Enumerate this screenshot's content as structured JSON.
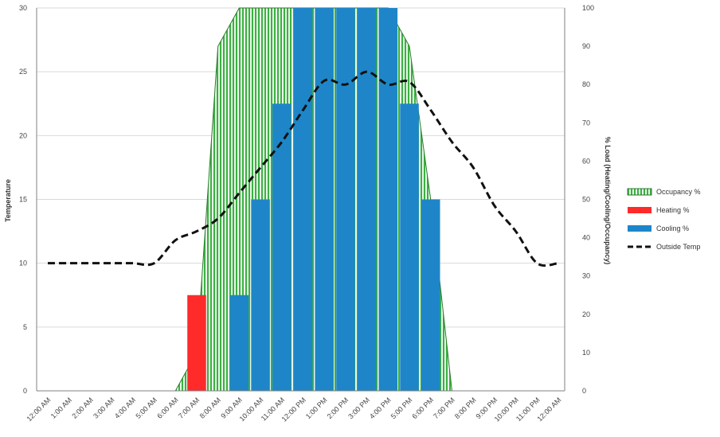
{
  "chart_data": {
    "type": "combo",
    "categories": [
      "12:00 AM",
      "1:00 AM",
      "2:00 AM",
      "3:00 AM",
      "4:00 AM",
      "5:00 AM",
      "6:00 AM",
      "7:00 AM",
      "8:00 AM",
      "9:00 AM",
      "10:00 AM",
      "11:00 AM",
      "12:00 PM",
      "1:00 PM",
      "2:00 PM",
      "3:00 PM",
      "4:00 PM",
      "5:00 PM",
      "6:00 PM",
      "7:00 PM",
      "8:00 PM",
      "9:00 PM",
      "10:00 PM",
      "11:00 PM",
      "12:00 AM"
    ],
    "y_left": {
      "label": "Temperature",
      "min": 0,
      "max": 30,
      "ticks": [
        0,
        5,
        10,
        15,
        20,
        25,
        30
      ]
    },
    "y_right": {
      "label": "% Load (Heating/Cooling/Occupancy)",
      "min": 0,
      "max": 100,
      "ticks": [
        0,
        10,
        20,
        30,
        40,
        50,
        60,
        70,
        80,
        90,
        100
      ]
    },
    "grid": true,
    "legend_position": "right",
    "series": [
      {
        "name": "Occupancy %",
        "kind": "area",
        "axis": "right",
        "color": "#3cb043",
        "values": [
          0,
          0,
          0,
          0,
          0,
          0,
          0,
          10,
          90,
          100,
          100,
          100,
          100,
          100,
          100,
          100,
          100,
          90,
          50,
          0,
          0,
          0,
          0,
          0,
          0
        ]
      },
      {
        "name": "Heating %",
        "kind": "column",
        "axis": "right",
        "color": "#ff2a2a",
        "values": [
          0,
          0,
          0,
          0,
          0,
          0,
          0,
          25,
          0,
          0,
          0,
          0,
          0,
          0,
          0,
          0,
          0,
          0,
          0,
          0,
          0,
          0,
          0,
          0,
          0
        ]
      },
      {
        "name": "Cooling %",
        "kind": "column",
        "axis": "right",
        "color": "#1e86c8",
        "values": [
          0,
          0,
          0,
          0,
          0,
          0,
          0,
          0,
          0,
          25,
          50,
          75,
          100,
          100,
          100,
          100,
          100,
          75,
          50,
          0,
          0,
          0,
          0,
          0,
          0
        ]
      },
      {
        "name": "Outside Temp",
        "kind": "line",
        "axis": "left",
        "color": "#111111",
        "values": [
          10,
          10,
          10,
          10,
          10,
          10,
          11.8,
          12.5,
          13.5,
          15.5,
          17.5,
          19.5,
          22,
          24.3,
          24,
          25,
          24,
          24.2,
          22,
          19.5,
          17.5,
          14.5,
          12.5,
          10,
          10
        ]
      }
    ]
  }
}
